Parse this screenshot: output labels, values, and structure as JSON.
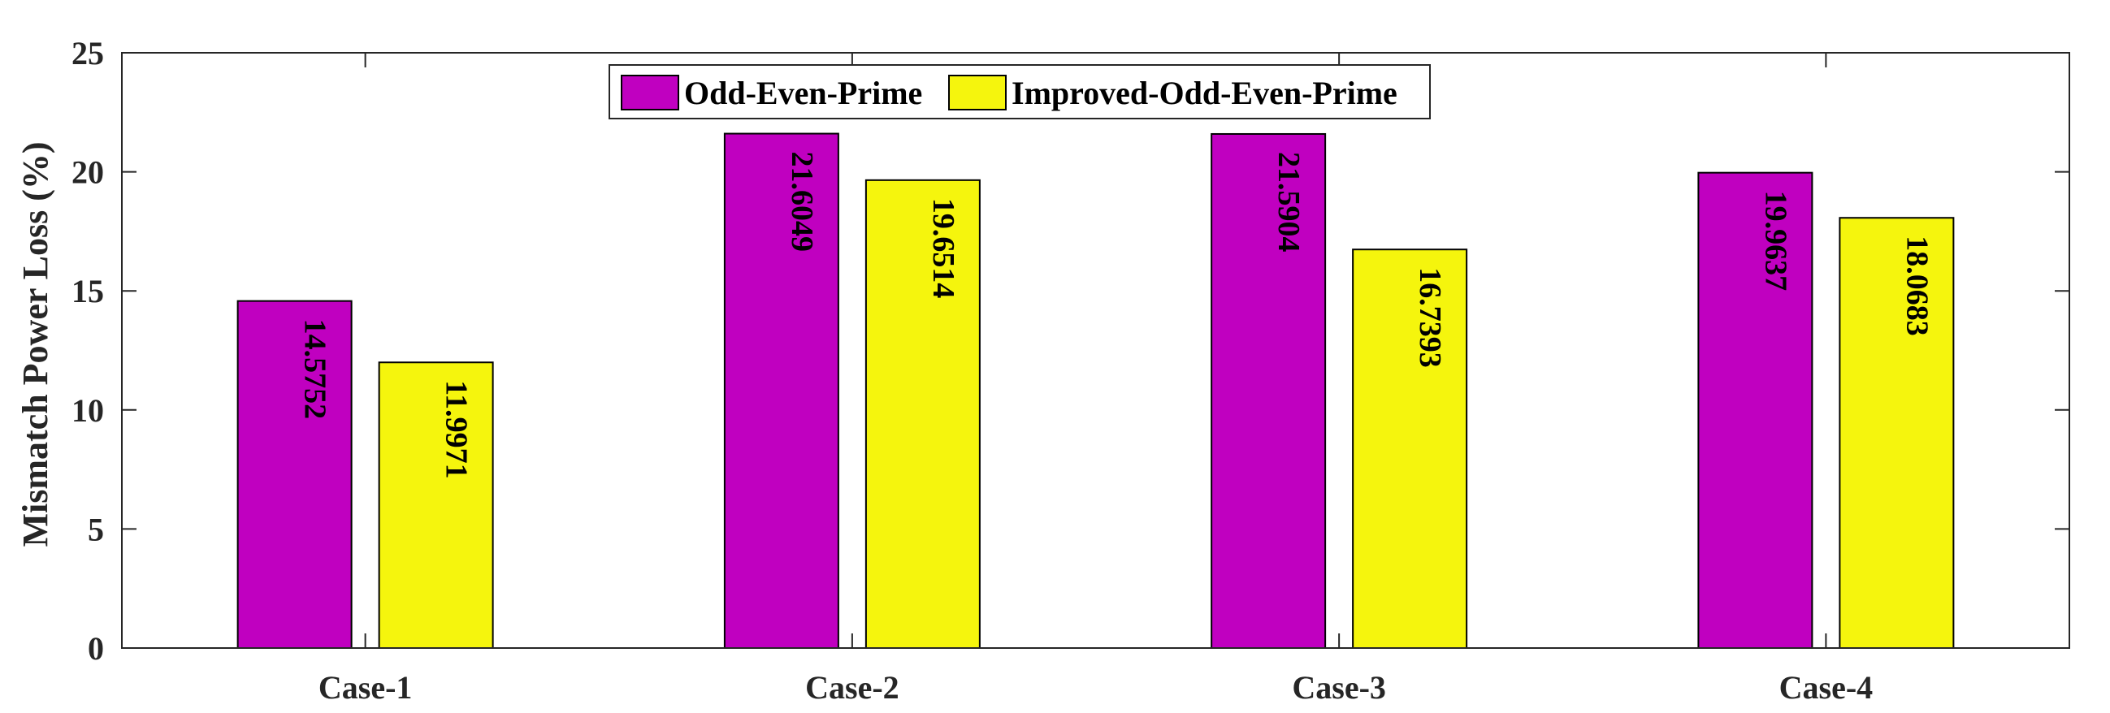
{
  "chart_data": {
    "type": "bar",
    "categories": [
      "Case-1",
      "Case-2",
      "Case-3",
      "Case-4"
    ],
    "series": [
      {
        "name": "Odd-Even-Prime",
        "values": [
          14.5752,
          21.6049,
          21.5904,
          19.9637
        ],
        "color": "#c000c0"
      },
      {
        "name": "Improved-Odd-Even-Prime",
        "values": [
          11.9971,
          19.6514,
          16.7393,
          18.0683
        ],
        "color": "#f5f50d"
      }
    ],
    "data_labels": [
      [
        "14.5752",
        "21.6049",
        "21.5904",
        "19.9637"
      ],
      [
        "11.9971",
        "19.6514",
        "16.7393",
        "18.0683"
      ]
    ],
    "title": "",
    "xlabel": "",
    "ylabel": "Mismatch Power Loss (%)",
    "ylim": [
      0,
      25
    ],
    "yticks": [
      0,
      5,
      10,
      15,
      20,
      25
    ],
    "grid": false,
    "legend_position": "top-center"
  }
}
